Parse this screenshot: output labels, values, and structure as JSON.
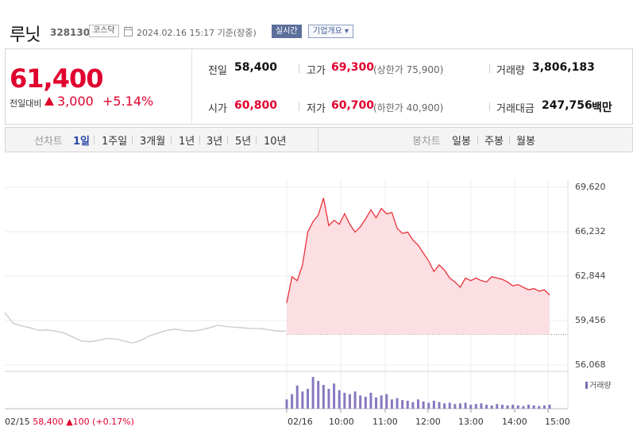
{
  "header": {
    "name": "루닛",
    "code": "328130",
    "market": "코스닥",
    "datetime": "2024.02.16 15:17 기준(장중)",
    "realtime_btn": "실시간",
    "overview_btn": "기업개요 ▾"
  },
  "quote": {
    "price": "61,400",
    "change_label": "전일대비",
    "change_value": "3,000",
    "change_pct": "+5.14%",
    "prev_close_label": "전일",
    "prev_close": "58,400",
    "open_label": "시가",
    "open": "60,800",
    "high_label": "고가",
    "high": "69,300",
    "upper_limit": "(상한가 75,900)",
    "low_label": "저가",
    "low": "60,700",
    "lower_limit": "(하한가 40,900)",
    "volume_label": "거래량",
    "volume": "3,806,183",
    "amount_label": "거래대금",
    "amount": "247,756",
    "amount_unit": "백만"
  },
  "toolbar": {
    "line_chart_label": "선차트",
    "periods": [
      "1일",
      "1주일",
      "3개월",
      "1년",
      "3년",
      "5년",
      "10년"
    ],
    "active_period": "1일",
    "candle_chart_label": "봉차트",
    "candles": [
      "일봉",
      "주봉",
      "월봉"
    ]
  },
  "chart_data": {
    "type": "line",
    "y_ticks": [
      "69,620",
      "66,232",
      "62,844",
      "59,456",
      "56,068"
    ],
    "ylim": [
      56068,
      69620
    ],
    "x_ticks": [
      "02/16",
      "10:00",
      "11:00",
      "12:00",
      "13:00",
      "14:00",
      "15:00"
    ],
    "prev_day": {
      "date": "02/15",
      "close": "58,400",
      "change": "100",
      "change_pct": "(+0.17%)"
    },
    "volume_legend": "거래량",
    "colors": {
      "up": "#e8323c",
      "fill": "#fbdfe2",
      "prev_line": "#c9c9c9",
      "volume": "#8878c0"
    },
    "prev_series": [
      60050,
      59250,
      59050,
      58900,
      58700,
      58750,
      58650,
      58500,
      58200,
      57900,
      57850,
      57950,
      58100,
      58050,
      57900,
      57750,
      57950,
      58300,
      58500,
      58700,
      58800,
      58700,
      58650,
      58750,
      58900,
      59100,
      59000,
      58950,
      58900,
      58850,
      58850,
      58750,
      58650,
      58650
    ],
    "today_series": [
      60800,
      62800,
      62500,
      63700,
      66200,
      67000,
      67500,
      68800,
      66700,
      67100,
      66800,
      67600,
      66800,
      66200,
      66600,
      67200,
      67900,
      67300,
      68000,
      67600,
      67700,
      66500,
      66100,
      66200,
      65600,
      65200,
      64600,
      64000,
      63200,
      63700,
      63300,
      62700,
      62400,
      62000,
      62700,
      62500,
      62700,
      62500,
      62400,
      62800,
      62700,
      62600,
      62400,
      62100,
      62200,
      62000,
      61800,
      61900,
      61700,
      61800,
      61400
    ],
    "today_volume": [
      14,
      22,
      35,
      26,
      30,
      48,
      42,
      36,
      30,
      38,
      28,
      24,
      22,
      26,
      20,
      18,
      24,
      17,
      20,
      22,
      14,
      16,
      13,
      12,
      10,
      14,
      11,
      9,
      12,
      10,
      8,
      9,
      7,
      8,
      9,
      6,
      7,
      8,
      6,
      5,
      7,
      6,
      5,
      6,
      5,
      4,
      6,
      5,
      4,
      5,
      6
    ]
  }
}
